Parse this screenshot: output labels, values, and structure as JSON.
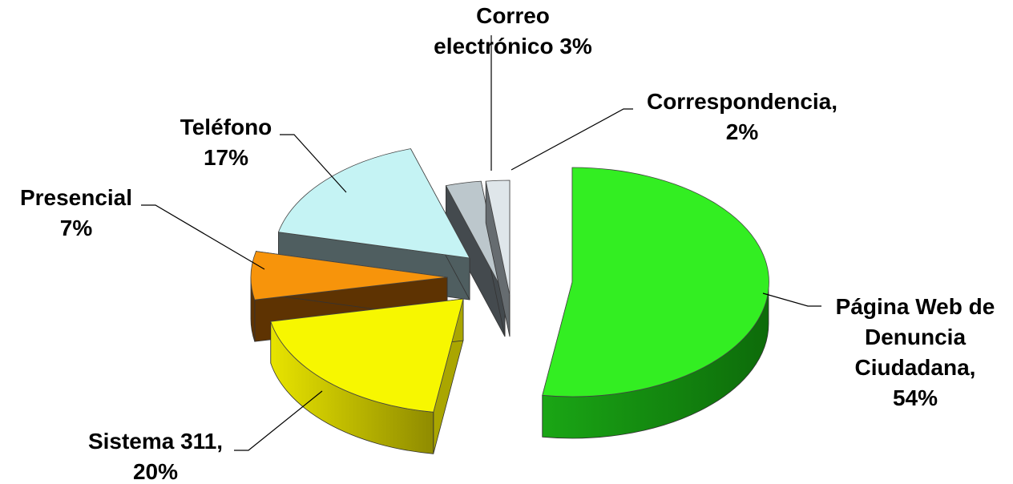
{
  "chart_data": {
    "type": "pie",
    "style": "3d-exploded",
    "slices": [
      {
        "name": "Página Web de Denuncia Ciudadana",
        "value": 54,
        "label_lines": [
          "Página Web de",
          "Denuncia",
          "Ciudadana,",
          "54%"
        ],
        "top_color": "#33ee22",
        "side_color": "#138c0e"
      },
      {
        "name": "Sistema 311",
        "value": 20,
        "label_lines": [
          "Sistema 311,",
          "20%"
        ],
        "top_color": "#f7f700",
        "side_color": "#aaa600"
      },
      {
        "name": "Presencial",
        "value": 7,
        "label_lines": [
          "Presencial",
          "7%"
        ],
        "top_color": "#f7940b",
        "side_color": "#5e3302"
      },
      {
        "name": "Teléfono",
        "value": 17,
        "label_lines": [
          "Teléfono",
          "17%"
        ],
        "top_color": "#c5f3f4",
        "side_color": "#4f5e60"
      },
      {
        "name": "Correo electrónico",
        "value": 3,
        "label_lines": [
          "Correo",
          "electrónico 3%"
        ],
        "top_color": "#bcc7cc",
        "side_color": "#444a4e"
      },
      {
        "name": "Correspondencia",
        "value": 2,
        "label_lines": [
          "Correspondencia,",
          "2%"
        ],
        "top_color": "#dfe6ea",
        "side_color": "#666c70"
      }
    ],
    "legend": "none",
    "data_labels": "outside-with-leader-lines"
  }
}
